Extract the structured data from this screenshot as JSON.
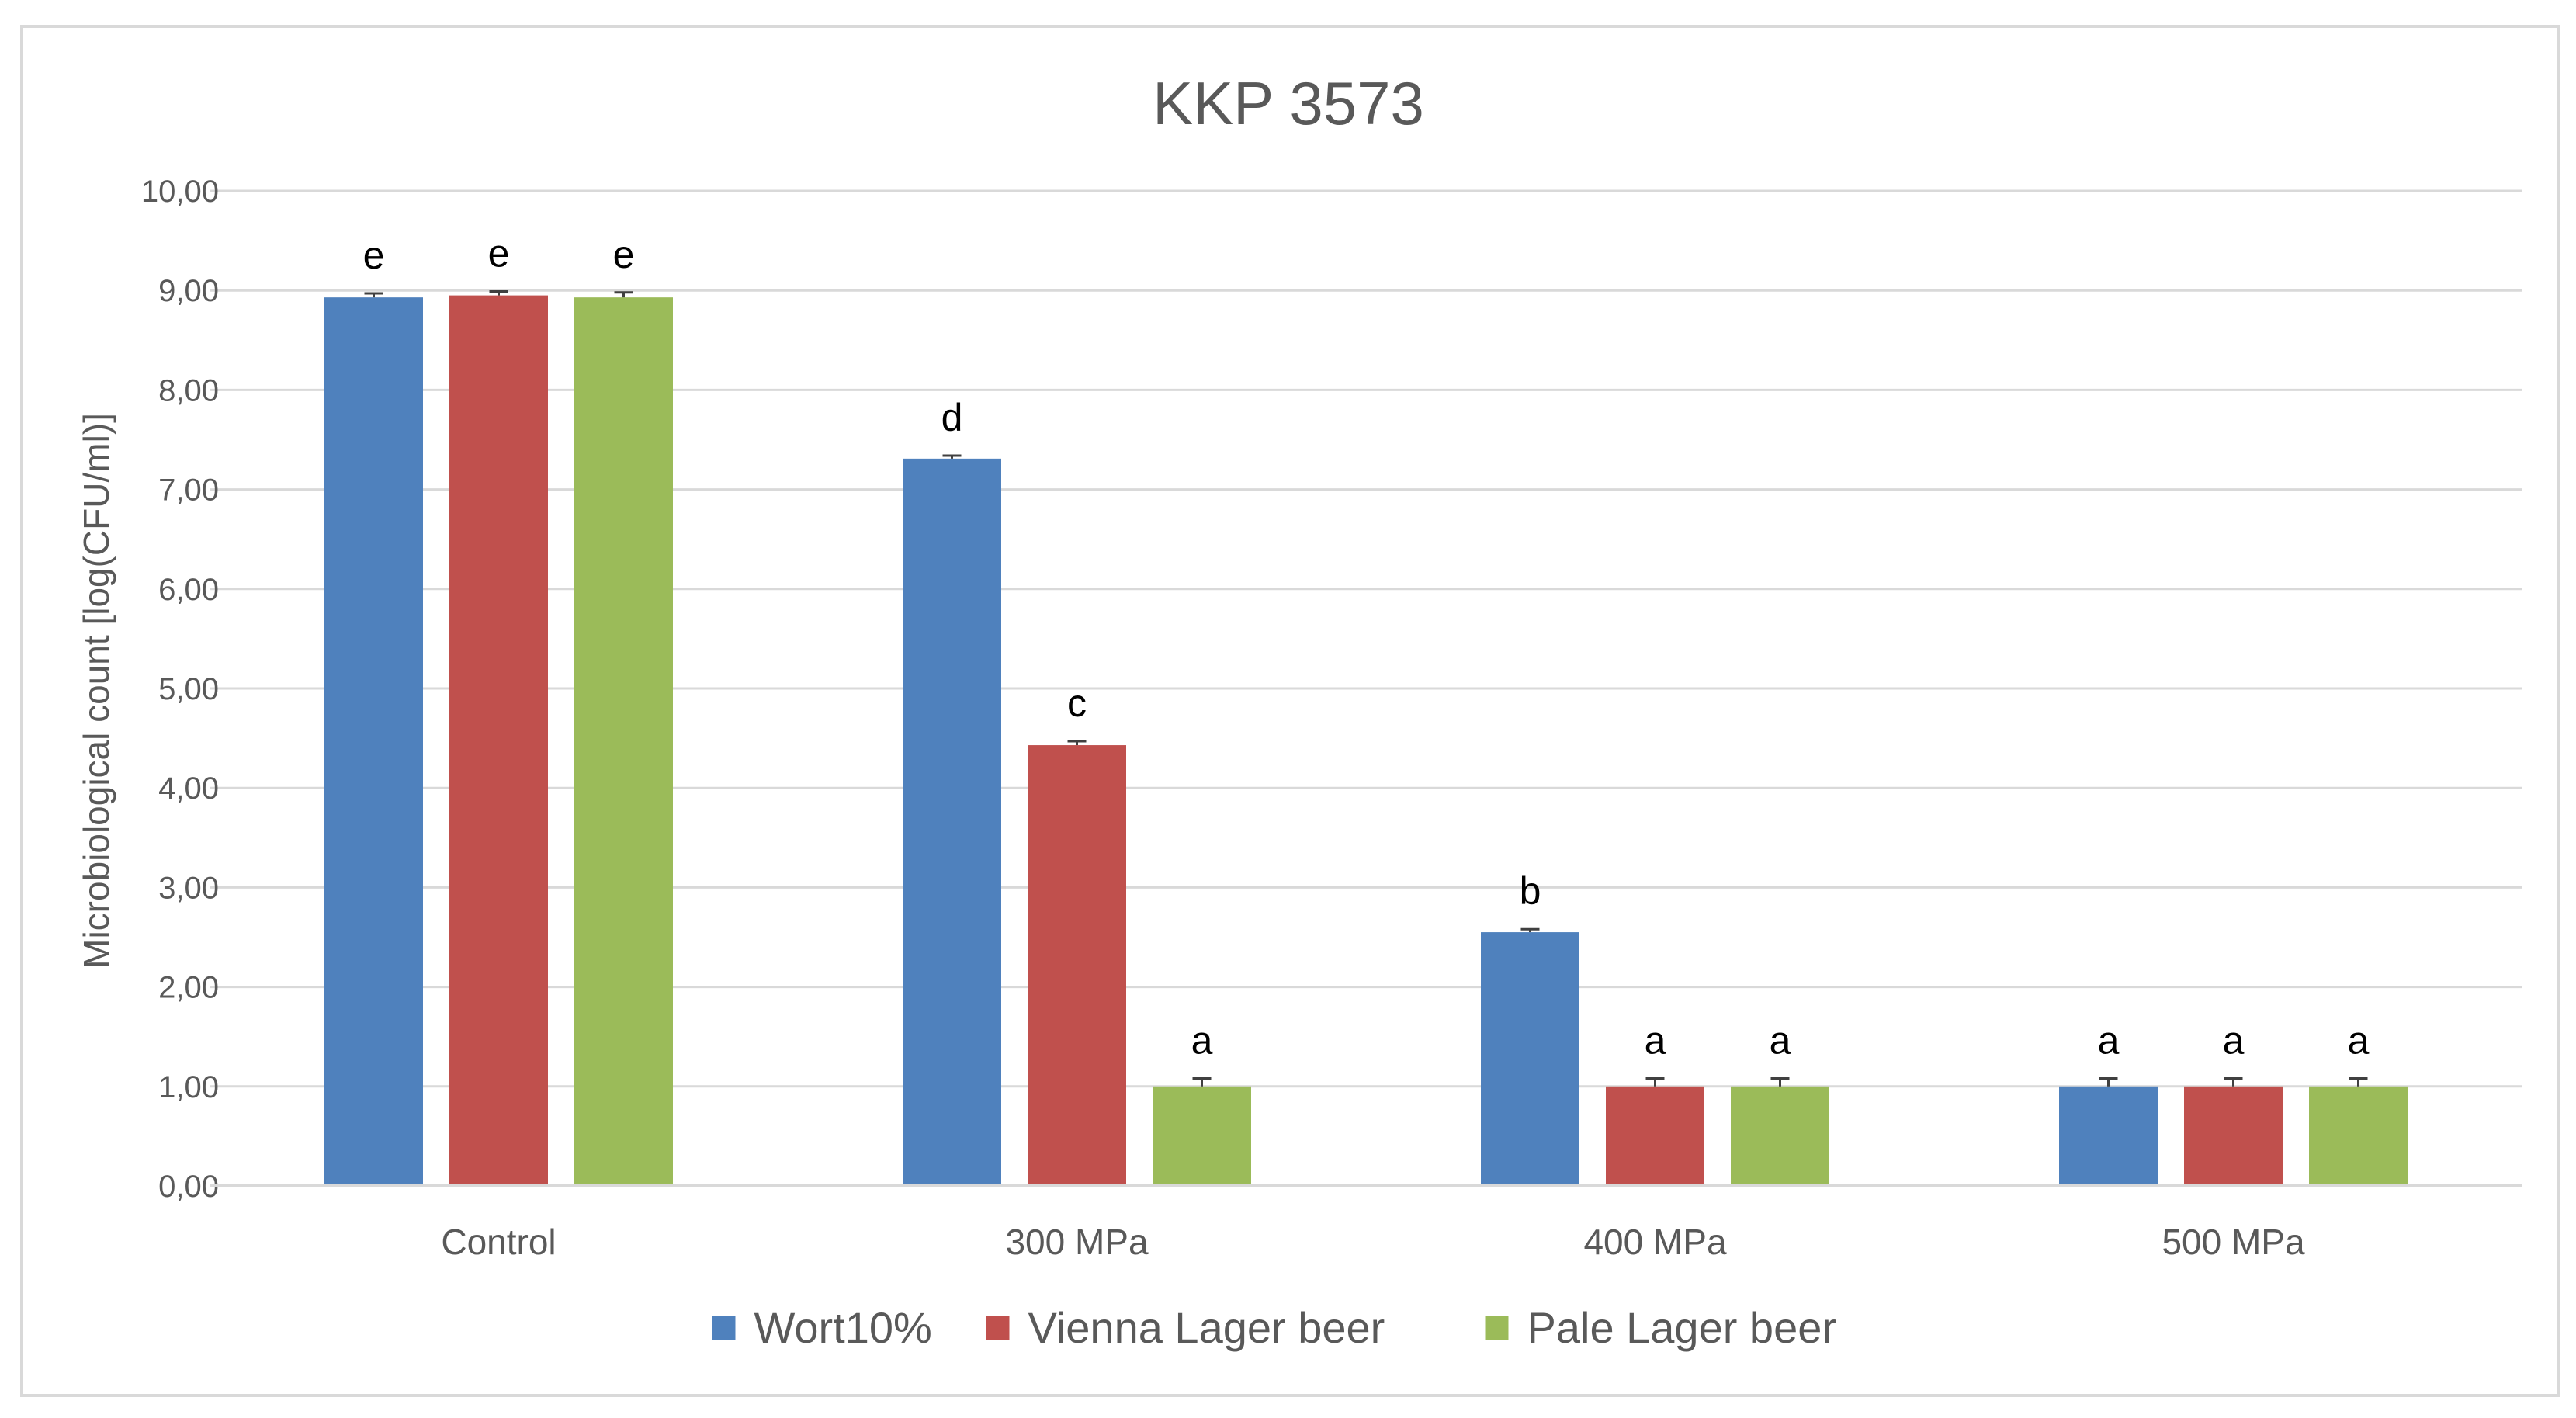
{
  "chart_data": {
    "type": "bar",
    "title": "KKP 3573",
    "ylabel": "Microbiological count [log(CFU/ml)]",
    "xlabel": "",
    "ylim": [
      0,
      10
    ],
    "yticks": [
      "0,00",
      "1,00",
      "2,00",
      "3,00",
      "4,00",
      "5,00",
      "6,00",
      "7,00",
      "8,00",
      "9,00",
      "10,00"
    ],
    "categories": [
      "Control",
      "300 MPa",
      "400 MPa",
      "500 MPa"
    ],
    "grid": true,
    "legend_position": "bottom",
    "series": [
      {
        "name": "Wort10%",
        "color": "#4f81bd",
        "values": [
          8.93,
          7.31,
          2.55,
          1.0
        ],
        "errors": [
          0.04,
          0.03,
          0.03,
          0.08
        ],
        "labels": [
          "e",
          "d",
          "b",
          "a"
        ]
      },
      {
        "name": "Vienna Lager beer",
        "color": "#c0504d",
        "values": [
          8.95,
          4.43,
          1.0,
          1.0
        ],
        "errors": [
          0.04,
          0.04,
          0.08,
          0.08
        ],
        "labels": [
          "e",
          "c",
          "a",
          "a"
        ]
      },
      {
        "name": "Pale Lager beer",
        "color": "#9bbb59",
        "values": [
          8.93,
          1.0,
          1.0,
          1.0
        ],
        "errors": [
          0.05,
          0.08,
          0.08,
          0.08
        ],
        "labels": [
          "e",
          "a",
          "a",
          "a"
        ]
      }
    ]
  }
}
